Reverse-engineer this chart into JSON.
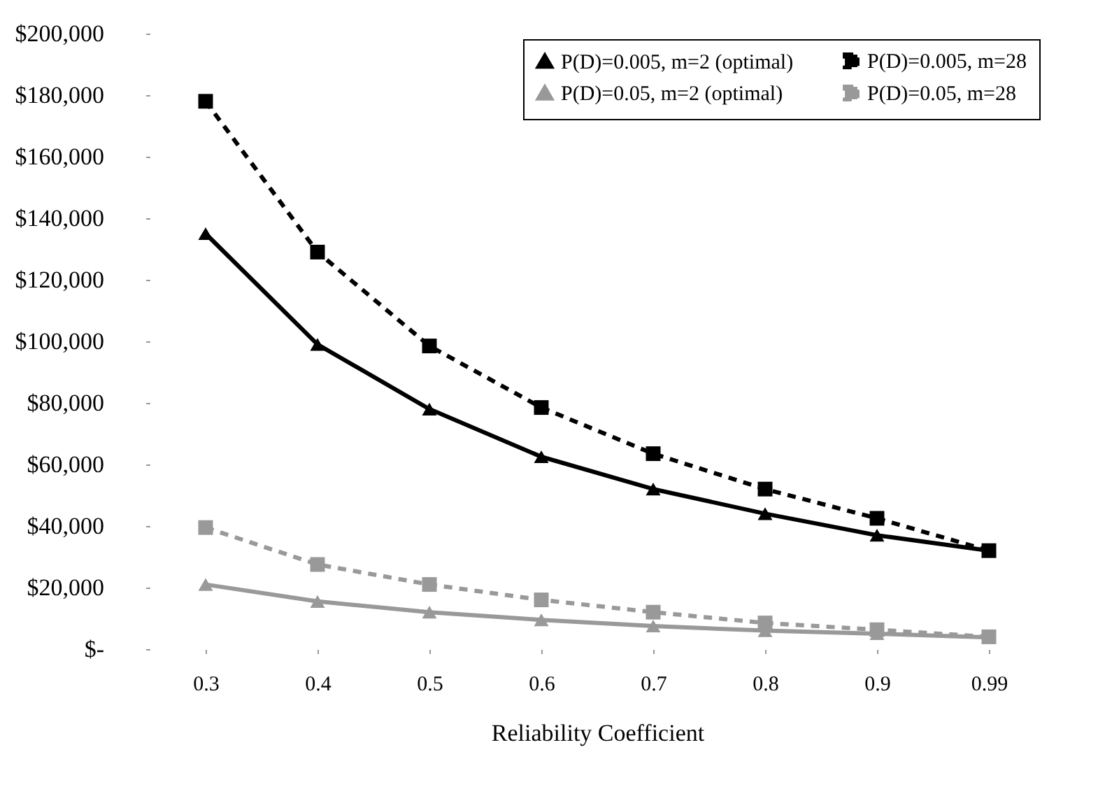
{
  "chart_data": {
    "type": "line",
    "xlabel": "Reliability Coefficient",
    "categories": [
      "0.3",
      "0.4",
      "0.5",
      "0.6",
      "0.7",
      "0.8",
      "0.9",
      "0.99"
    ],
    "ylim": [
      0,
      200000
    ],
    "yticks": [
      {
        "value": 0,
        "label": "$-"
      },
      {
        "value": 20000,
        "label": "$20,000"
      },
      {
        "value": 40000,
        "label": "$40,000"
      },
      {
        "value": 60000,
        "label": "$60,000"
      },
      {
        "value": 80000,
        "label": "$80,000"
      },
      {
        "value": 100000,
        "label": "$100,000"
      },
      {
        "value": 120000,
        "label": "$120,000"
      },
      {
        "value": 140000,
        "label": "$140,000"
      },
      {
        "value": 160000,
        "label": "$160,000"
      },
      {
        "value": 180000,
        "label": "$180,000"
      },
      {
        "value": 200000,
        "label": "$200,000"
      }
    ],
    "grid": false,
    "legend": "top right",
    "series": [
      {
        "name": "P(D)=0.005, m=2 (optimal)",
        "color": "#000000",
        "marker": "triangle",
        "line_style": "solid",
        "values": [
          135000,
          99000,
          78000,
          62500,
          52000,
          44000,
          37000,
          32000
        ]
      },
      {
        "name": "P(D)=0.005, m=28",
        "color": "#000000",
        "marker": "square",
        "line_style": "dashed",
        "values": [
          178000,
          129000,
          98500,
          78500,
          63500,
          52000,
          42500,
          32000
        ]
      },
      {
        "name": "P(D)=0.05, m=2 (optimal)",
        "color": "#999999",
        "marker": "triangle",
        "line_style": "solid",
        "values": [
          21000,
          15500,
          12000,
          9500,
          7500,
          6000,
          5000,
          3800
        ]
      },
      {
        "name": "P(D)=0.05, m=28",
        "color": "#999999",
        "marker": "square",
        "line_style": "dashed",
        "values": [
          39500,
          27500,
          21000,
          16000,
          12000,
          8500,
          6300,
          4000
        ]
      }
    ]
  }
}
